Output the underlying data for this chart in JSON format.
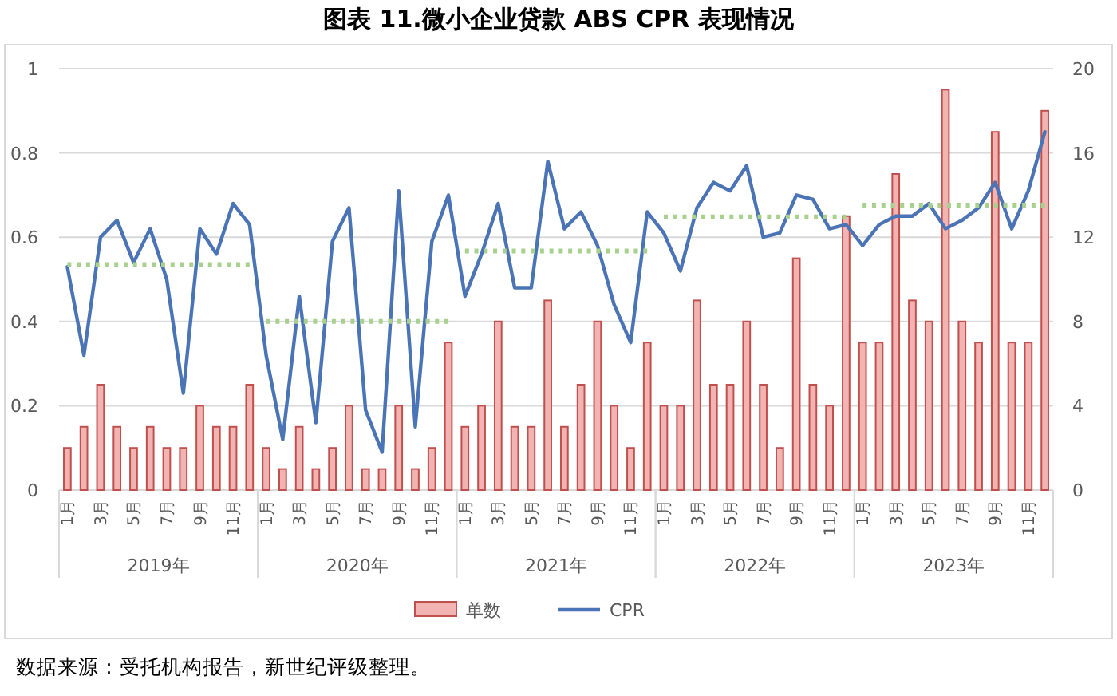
{
  "chart_data": {
    "type": "bar",
    "title": "图表 11.微小企业贷款 ABS CPR 表现情况",
    "x": [
      "2019-01",
      "2019-02",
      "2019-03",
      "2019-04",
      "2019-05",
      "2019-06",
      "2019-07",
      "2019-08",
      "2019-09",
      "2019-10",
      "2019-11",
      "2019-12",
      "2020-01",
      "2020-02",
      "2020-03",
      "2020-04",
      "2020-05",
      "2020-06",
      "2020-07",
      "2020-08",
      "2020-09",
      "2020-10",
      "2020-11",
      "2020-12",
      "2021-01",
      "2021-02",
      "2021-03",
      "2021-04",
      "2021-05",
      "2021-06",
      "2021-07",
      "2021-08",
      "2021-09",
      "2021-10",
      "2021-11",
      "2021-12",
      "2022-01",
      "2022-02",
      "2022-03",
      "2022-04",
      "2022-05",
      "2022-06",
      "2022-07",
      "2022-08",
      "2022-09",
      "2022-10",
      "2022-11",
      "2022-12",
      "2023-01",
      "2023-02",
      "2023-03",
      "2023-04",
      "2023-05",
      "2023-06",
      "2023-07",
      "2023-08",
      "2023-09",
      "2023-10",
      "2023-11",
      "2023-12"
    ],
    "series": [
      {
        "name": "单数",
        "axis": "y2",
        "color": "#f2b3b3",
        "values": [
          2,
          3,
          5,
          3,
          2,
          3,
          2,
          2,
          4,
          3,
          3,
          5,
          2,
          1,
          3,
          1,
          2,
          4,
          1,
          1,
          4,
          1,
          2,
          7,
          3,
          4,
          8,
          3,
          3,
          9,
          3,
          5,
          8,
          4,
          2,
          7,
          4,
          4,
          9,
          5,
          5,
          8,
          5,
          2,
          11,
          5,
          4,
          13,
          7,
          7,
          15,
          9,
          8,
          19,
          8,
          7,
          17,
          7,
          7,
          18
        ]
      },
      {
        "name": "CPR",
        "type": "line",
        "color": "#4a74b5",
        "marker": "none",
        "line_style": "solid",
        "values": [
          0.53,
          0.32,
          0.6,
          0.64,
          0.54,
          0.62,
          0.5,
          0.23,
          0.62,
          0.56,
          0.68,
          0.63,
          0.32,
          0.12,
          0.46,
          0.16,
          0.59,
          0.67,
          0.19,
          0.09,
          0.71,
          0.15,
          0.59,
          0.7,
          0.46,
          0.56,
          0.68,
          0.48,
          0.48,
          0.78,
          0.62,
          0.66,
          0.58,
          0.44,
          0.35,
          0.66,
          0.61,
          0.52,
          0.67,
          0.73,
          0.71,
          0.77,
          0.6,
          0.61,
          0.7,
          0.69,
          0.62,
          0.63,
          0.58,
          0.63,
          0.65,
          0.65,
          0.68,
          0.62,
          0.64,
          0.67,
          0.73,
          0.62,
          0.71,
          0.85
        ]
      },
      {
        "type": "line",
        "color": "#a9d18e",
        "line_style": "dotted",
        "x": [
          "2019-01",
          "2019-12"
        ],
        "values": [
          0.535,
          0.535
        ]
      },
      {
        "type": "line",
        "color": "#a9d18e",
        "line_style": "dotted",
        "x": [
          "2020-01",
          "2020-12"
        ],
        "values": [
          0.4,
          0.4
        ]
      },
      {
        "type": "line",
        "color": "#a9d18e",
        "line_style": "dotted",
        "x": [
          "2021-01",
          "2021-12"
        ],
        "values": [
          0.567,
          0.567
        ]
      },
      {
        "type": "line",
        "color": "#a9d18e",
        "line_style": "dotted",
        "x": [
          "2022-01",
          "2022-12"
        ],
        "values": [
          0.648,
          0.648
        ]
      },
      {
        "type": "line",
        "color": "#a9d18e",
        "line_style": "dotted",
        "x": [
          "2023-01",
          "2023-12"
        ],
        "values": [
          0.676,
          0.676
        ]
      }
    ],
    "xlim": [
      "2018-12-16",
      "2023-12-16"
    ],
    "xticks": [
      {
        "value": "2019-01",
        "label": "1月"
      },
      {
        "value": "2019-03",
        "label": "3月"
      },
      {
        "value": "2019-05",
        "label": "5月"
      },
      {
        "value": "2019-07",
        "label": "7月"
      },
      {
        "value": "2019-09",
        "label": "9月"
      },
      {
        "value": "2019-11",
        "label": "11月"
      },
      {
        "value": "2020-01",
        "label": "1月"
      },
      {
        "value": "2020-03",
        "label": "3月"
      },
      {
        "value": "2020-05",
        "label": "5月"
      },
      {
        "value": "2020-07",
        "label": "7月"
      },
      {
        "value": "2020-09",
        "label": "9月"
      },
      {
        "value": "2020-11",
        "label": "11月"
      },
      {
        "value": "2021-01",
        "label": "1月"
      },
      {
        "value": "2021-03",
        "label": "3月"
      },
      {
        "value": "2021-05",
        "label": "5月"
      },
      {
        "value": "2021-07",
        "label": "7月"
      },
      {
        "value": "2021-09",
        "label": "9月"
      },
      {
        "value": "2021-11",
        "label": "11月"
      },
      {
        "value": "2022-01",
        "label": "1月"
      },
      {
        "value": "2022-03",
        "label": "3月"
      },
      {
        "value": "2022-05",
        "label": "5月"
      },
      {
        "value": "2022-07",
        "label": "7月"
      },
      {
        "value": "2022-09",
        "label": "9月"
      },
      {
        "value": "2022-11",
        "label": "11月"
      },
      {
        "value": "2023-01",
        "label": "1月"
      },
      {
        "value": "2023-03",
        "label": "3月"
      },
      {
        "value": "2023-05",
        "label": "5月"
      },
      {
        "value": "2023-07",
        "label": "7月"
      },
      {
        "value": "2023-09",
        "label": "9月"
      },
      {
        "value": "2023-11",
        "label": "11月"
      }
    ],
    "ylim": [
      0,
      1
    ],
    "yticks": [
      0,
      0.2,
      0.4,
      0.6,
      0.8,
      1
    ],
    "y2lim": [
      0,
      20
    ],
    "y2ticks": [
      0,
      4,
      8,
      12,
      16,
      20
    ],
    "grid": "y",
    "legend": "bottom",
    "annotations": [
      "2019年",
      "2020年",
      "2021年",
      "2022年",
      "2023年",
      "数据来源：受托机构报告，新世纪评级整理。"
    ]
  }
}
